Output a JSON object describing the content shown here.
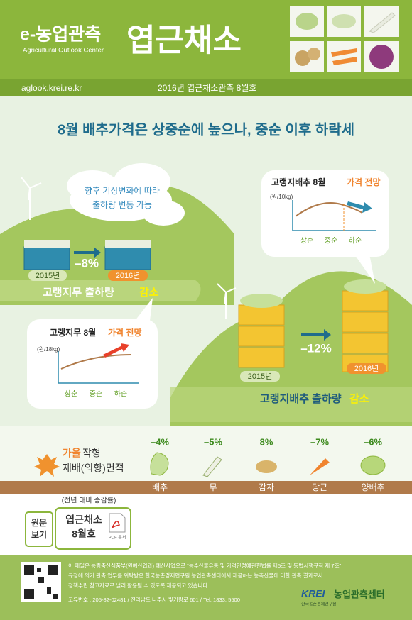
{
  "header": {
    "brand": "e-농업관측",
    "brand_en": "Agricultural Outlook Center",
    "title": "엽근채소",
    "url": "aglook.krei.re.kr",
    "issue": "2016년 엽근채소관측 8월호"
  },
  "headline": "8월 배추가격은 상중순에 높으나, 중순 이후 하락세",
  "cloud": [
    "향후 기상변화에 따라",
    "출하량 변동 가능"
  ],
  "radish": {
    "years": [
      "2015년",
      "2016년"
    ],
    "change": "–8%",
    "caption": [
      "고랭지무 출하량",
      "감소"
    ],
    "outlook": {
      "title": [
        "고랭지무 8월",
        "가격 전망"
      ],
      "unit": "(원/18kg)",
      "periods": [
        "상순",
        "중순",
        "하순"
      ]
    }
  },
  "cabbage": {
    "years": [
      "2015년",
      "2016년"
    ],
    "change": "–12%",
    "caption": [
      "고랭지배추 출하량",
      "감소"
    ],
    "outlook": {
      "title": [
        "고랭지배추 8월",
        "가격 전망"
      ],
      "unit": "(원/10kg)",
      "periods": [
        "상순",
        "중순",
        "하순"
      ]
    }
  },
  "area": {
    "title": [
      "가을",
      "작형"
    ],
    "title_line2": "재배(의향)면적",
    "note": "(전년 대비 증감률)",
    "items": [
      {
        "name": "배추",
        "change": "–4%"
      },
      {
        "name": "무",
        "change": "–5%"
      },
      {
        "name": "감자",
        "change": "8%"
      },
      {
        "name": "당근",
        "change": "–7%"
      },
      {
        "name": "양배추",
        "change": "–6%"
      }
    ]
  },
  "original": {
    "label": [
      "원문",
      "보기"
    ],
    "doc": [
      "엽근채소",
      "8월호"
    ],
    "file": "PDF 문서"
  },
  "footer": {
    "notice": [
      "이 메일은 농림축산식품부(원예산업과) 예산사업으로 “농수산물유통 및 가격안정에관한법률 제5조 및 동법시행규칙 제 7조”",
      "규정에 의거 관측 업무를 위탁받은 한국농촌경제연구원 농업관측센터에서 제공하는 농축산물에 대한 관측 결과로서",
      "정책수립 참고자료로 널리 활용될 수 있도록 제공되고 있습니다."
    ],
    "contact": "고유번호 : 205-82-02481 / 전라남도 나주시 빛가람로 601 / Tel. 1833. 5500",
    "logo": "KREI",
    "org": "농업관측센터",
    "org_sub": "한국농촌경제연구원"
  }
}
